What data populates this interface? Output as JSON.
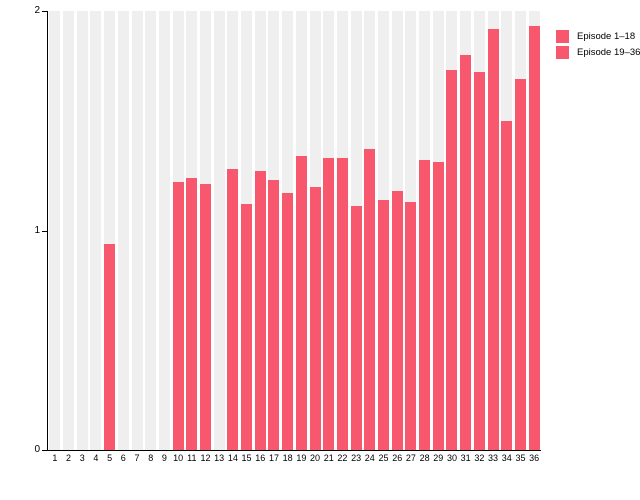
{
  "chart_data": {
    "type": "bar",
    "title": "",
    "xlabel": "",
    "ylabel": "",
    "categories": [
      "1",
      "2",
      "3",
      "4",
      "5",
      "6",
      "7",
      "8",
      "9",
      "10",
      "11",
      "12",
      "13",
      "14",
      "15",
      "16",
      "17",
      "18",
      "19",
      "20",
      "21",
      "22",
      "23",
      "24",
      "25",
      "26",
      "27",
      "28",
      "29",
      "30",
      "31",
      "32",
      "33",
      "34",
      "35",
      "36"
    ],
    "values": [
      0,
      0,
      0,
      0,
      0.94,
      0,
      0,
      0,
      0,
      1.22,
      1.24,
      1.21,
      0,
      1.28,
      1.12,
      1.27,
      1.23,
      1.17,
      1.34,
      1.2,
      1.33,
      1.33,
      1.11,
      1.37,
      1.14,
      1.18,
      1.13,
      1.32,
      1.31,
      1.73,
      1.8,
      1.72,
      1.92,
      1.5,
      1.69,
      1.93
    ],
    "ylim": [
      0,
      2
    ],
    "yticks": [
      0,
      1,
      2
    ],
    "grid": "vertical-stripes",
    "bar_color": "#f8586e",
    "stripe_color": "#efefef",
    "axis_color": "#000000",
    "legend_position": "right-top",
    "legend": [
      {
        "label": "Episode 1–18",
        "color": "#f8586e"
      },
      {
        "label": "Episode 19–36",
        "color": "#f8586e"
      }
    ]
  }
}
